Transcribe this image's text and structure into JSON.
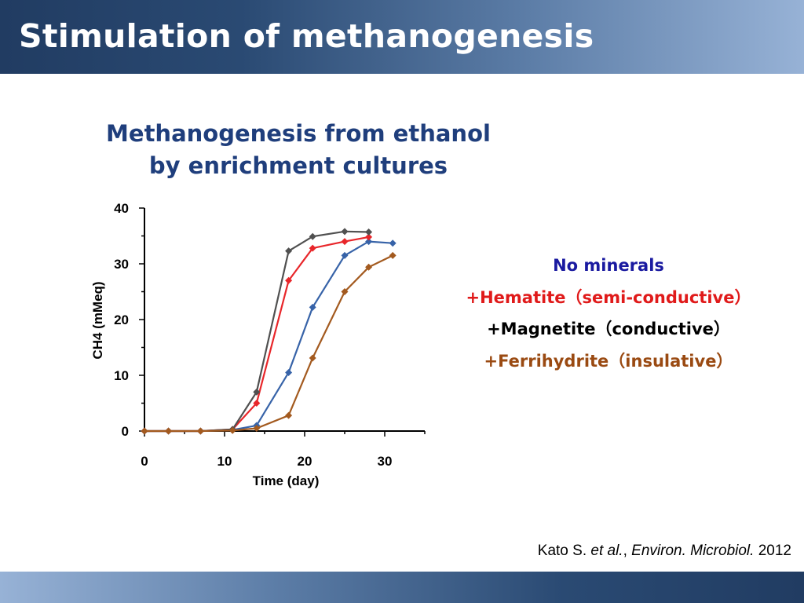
{
  "slide": {
    "title": "Stimulation of methanogenesis",
    "chart_title_line1": "Methanogenesis from ethanol",
    "chart_title_line2": "by enrichment cultures",
    "citation": {
      "author": "Kato S.",
      "etal": "et al.",
      "sep": ",",
      "journal": "Environ. Microbiol.",
      "year": "2012"
    },
    "legend": [
      {
        "label": "No minerals",
        "color": "#1a1aa0"
      },
      {
        "label": "+Hematite（semi-conductive）",
        "color": "#e01a1a"
      },
      {
        "label": "+Magnetite（conductive）",
        "color": "#000000"
      },
      {
        "label": "+Ferrihydrite（insulative）",
        "color": "#9a4a12"
      }
    ]
  },
  "chart_data": {
    "type": "line",
    "xlabel": "Time (day)",
    "ylabel": "CH4 (mMeq)",
    "xlim": [
      0,
      35
    ],
    "ylim": [
      0,
      40
    ],
    "xticks": [
      0,
      10,
      20,
      30
    ],
    "yticks": [
      0,
      10,
      20,
      30,
      40
    ],
    "grid": false,
    "series": [
      {
        "name": "No minerals",
        "color": "#3763a8",
        "x": [
          0,
          3,
          7,
          11,
          14,
          18,
          21,
          25,
          28,
          31
        ],
        "y": [
          0,
          0,
          0,
          0.2,
          1.0,
          10.5,
          22.2,
          31.5,
          34.0,
          33.7
        ]
      },
      {
        "name": "+Hematite（semi-conductive）",
        "color": "#e8262a",
        "x": [
          0,
          3,
          7,
          11,
          14,
          18,
          21,
          25,
          28
        ],
        "y": [
          0,
          0,
          0,
          0.3,
          5.0,
          27.0,
          32.8,
          34.0,
          34.8
        ]
      },
      {
        "name": "+Magnetite（conductive）",
        "color": "#505050",
        "x": [
          0,
          3,
          7,
          11,
          14,
          18,
          21,
          25,
          28
        ],
        "y": [
          0,
          0,
          0,
          0.3,
          7.0,
          32.3,
          34.9,
          35.8,
          35.7
        ]
      },
      {
        "name": "+Ferrihydrite（insulative）",
        "color": "#a35a1f",
        "x": [
          0,
          3,
          7,
          11,
          14,
          18,
          21,
          25,
          28,
          31
        ],
        "y": [
          0,
          0,
          0,
          0.1,
          0.5,
          2.8,
          13.1,
          25.0,
          29.4,
          31.5
        ]
      }
    ]
  }
}
